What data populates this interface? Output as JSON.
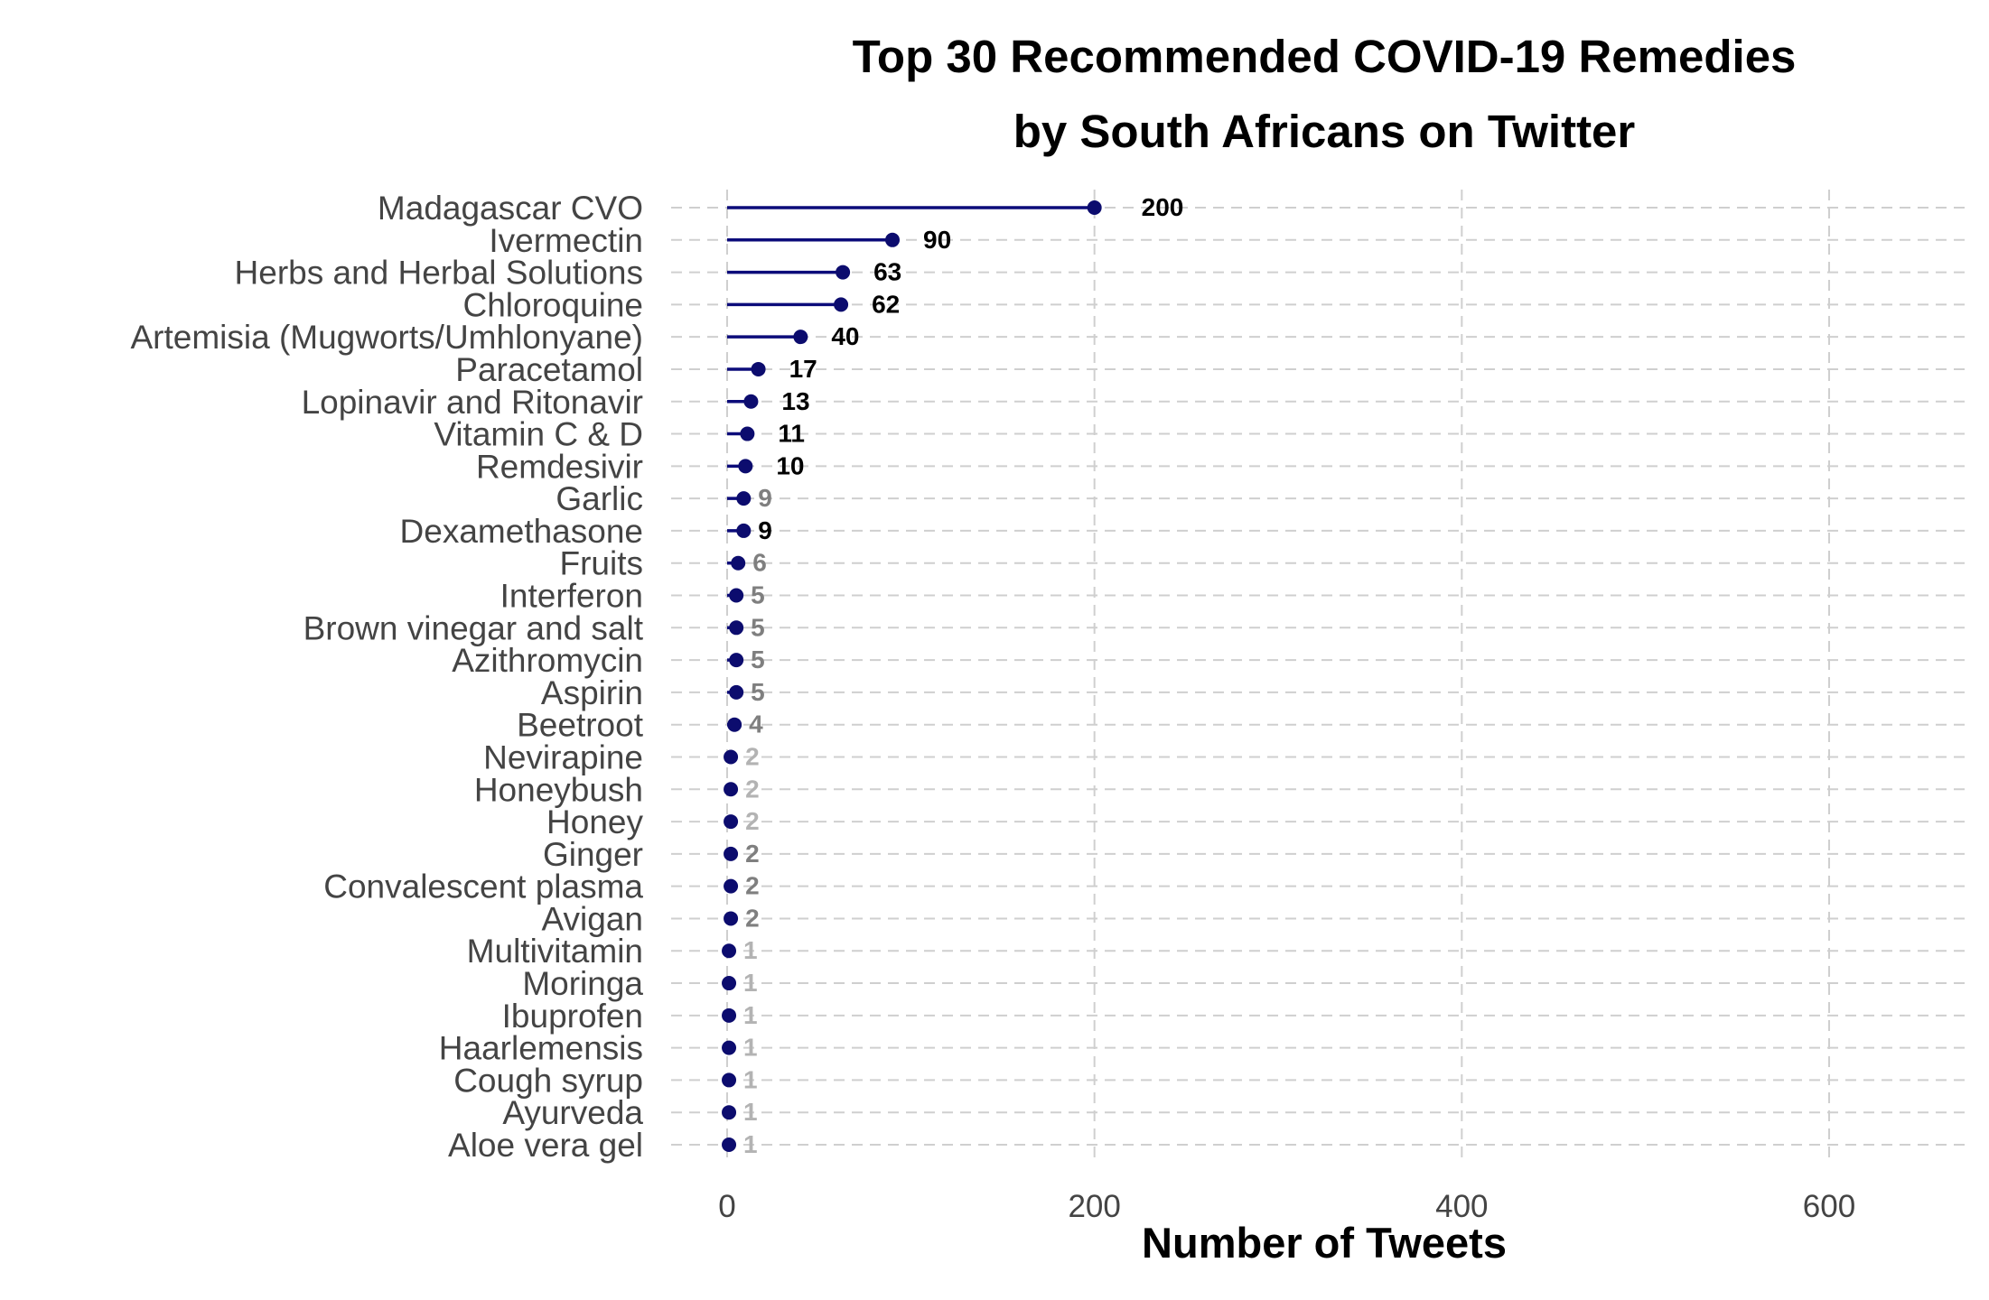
{
  "chart_data": {
    "type": "lollipop",
    "title_lines": [
      "Top 30 Recommended COVID-19 Remedies",
      "by South Africans on Twitter"
    ],
    "xlabel": "Number of Tweets",
    "ylabel": "",
    "xlim": [
      0,
      680
    ],
    "xticks": [
      0,
      200,
      400,
      600
    ],
    "xtick_labels": [
      "0",
      "200",
      "400",
      "600"
    ],
    "grid": true,
    "colors": {
      "stem": "#0c0c7a",
      "point": "#0c0c6e",
      "label_high": "#000000",
      "label_mid": "#7f7f7f",
      "label_low": "#b3b3b3"
    },
    "categories": [
      "Madagascar CVO",
      "Ivermectin",
      "Herbs and Herbal Solutions",
      "Chloroquine",
      "Artemisia (Mugworts/Umhlonyane)",
      "Paracetamol",
      "Lopinavir and Ritonavir",
      "Vitamin C & D",
      "Remdesivir",
      "Garlic",
      "Dexamethasone",
      "Fruits",
      "Interferon",
      "Brown vinegar and salt",
      "Azithromycin",
      "Aspirin",
      "Beetroot",
      "Nevirapine",
      "Honeybush",
      "Honey",
      "Ginger",
      "Convalescent plasma",
      "Avigan",
      "Multivitamin",
      "Moringa",
      "Ibuprofen",
      "Haarlemensis",
      "Cough syrup",
      "Ayurveda",
      "Aloe vera gel"
    ],
    "values": [
      200,
      90,
      63,
      62,
      40,
      17,
      13,
      11,
      10,
      9,
      9,
      6,
      5,
      5,
      5,
      5,
      4,
      2,
      2,
      2,
      2,
      2,
      2,
      1,
      1,
      1,
      1,
      1,
      1,
      1
    ],
    "label_tone": [
      "high",
      "high",
      "high",
      "high",
      "high",
      "high",
      "high",
      "high",
      "high",
      "mid",
      "high",
      "mid",
      "mid",
      "mid",
      "mid",
      "mid",
      "mid",
      "low",
      "low",
      "low",
      "mid",
      "mid",
      "mid",
      "low",
      "low",
      "low",
      "low",
      "low",
      "low",
      "low"
    ]
  }
}
